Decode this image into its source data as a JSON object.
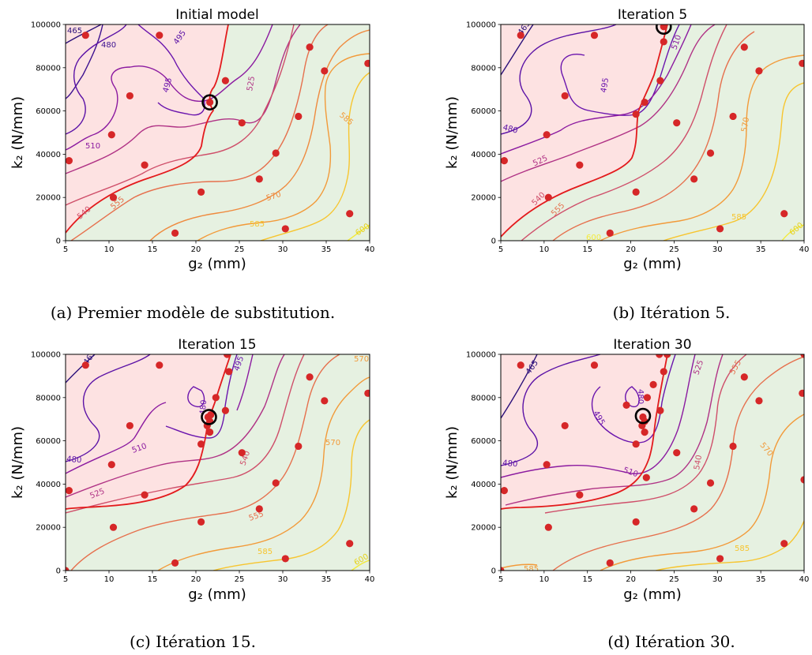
{
  "colors": {
    "infeasible_region": "#fde2e2",
    "feasible_region": "#e6f1e1",
    "boundary": "#e31a1c",
    "points": "#d62728",
    "highlight": "#000000",
    "contour_palette": [
      "#2a0f7a",
      "#5b12a6",
      "#8b1aa0",
      "#b03285",
      "#cf4f6a",
      "#e6704d",
      "#f29a39",
      "#f7c52f",
      "#f3ea3a"
    ]
  },
  "chart_data": [
    {
      "type": "contour",
      "title": "Initial model",
      "caption": "(a) Premier modèle de substitution.",
      "xlabel": "g₂ (mm)",
      "ylabel": "k₂ (N/mm)",
      "xlim": [
        5,
        40
      ],
      "ylim": [
        0,
        100000
      ],
      "xticks": [
        5,
        10,
        15,
        20,
        25,
        30,
        35,
        40
      ],
      "yticks": [
        0,
        20000,
        40000,
        60000,
        80000,
        100000
      ],
      "contour_labels": [
        "465",
        "480",
        "495",
        "495",
        "510",
        "525",
        "540",
        "555",
        "570",
        "585",
        "585",
        "600"
      ],
      "points": [
        [
          7.3,
          95000
        ],
        [
          15.8,
          95000
        ],
        [
          12.4,
          67000
        ],
        [
          10.3,
          49000
        ],
        [
          5.4,
          37000
        ],
        [
          14.1,
          35000
        ],
        [
          10.5,
          20000
        ],
        [
          17.6,
          3500
        ],
        [
          20.6,
          22500
        ],
        [
          23.4,
          74000
        ],
        [
          25.3,
          54500
        ],
        [
          27.3,
          28500
        ],
        [
          29.2,
          40500
        ],
        [
          30.3,
          5500
        ],
        [
          31.8,
          57500
        ],
        [
          33.1,
          89500
        ],
        [
          34.8,
          78500
        ],
        [
          37.7,
          12500
        ],
        [
          39.8,
          82000
        ],
        [
          21.6,
          64000
        ]
      ],
      "highlight": [
        21.6,
        64000
      ]
    },
    {
      "type": "contour",
      "title": "Iteration 5",
      "caption": "(b) Itération 5.",
      "xlabel": "g₂ (mm)",
      "ylabel": "k₂ (N/mm)",
      "xlim": [
        5,
        40
      ],
      "ylim": [
        0,
        100000
      ],
      "xticks": [
        5,
        10,
        15,
        20,
        25,
        30,
        35,
        40
      ],
      "yticks": [
        0,
        20000,
        40000,
        60000,
        80000,
        100000
      ],
      "contour_labels": [
        "465",
        "480",
        "495",
        "510",
        "525",
        "540",
        "555",
        "570",
        "585",
        "600",
        "600"
      ],
      "points": [
        [
          7.3,
          95000
        ],
        [
          15.8,
          95000
        ],
        [
          12.4,
          67000
        ],
        [
          10.3,
          49000
        ],
        [
          5.4,
          37000
        ],
        [
          14.1,
          35000
        ],
        [
          10.5,
          20000
        ],
        [
          17.6,
          3500
        ],
        [
          20.6,
          22500
        ],
        [
          23.4,
          74000
        ],
        [
          25.3,
          54500
        ],
        [
          27.3,
          28500
        ],
        [
          29.2,
          40500
        ],
        [
          30.3,
          5500
        ],
        [
          31.8,
          57500
        ],
        [
          33.1,
          89500
        ],
        [
          34.8,
          78500
        ],
        [
          37.7,
          12500
        ],
        [
          39.8,
          82000
        ],
        [
          21.6,
          64000
        ],
        [
          20.6,
          58500
        ],
        [
          23.8,
          92000
        ],
        [
          23.8,
          99000
        ]
      ],
      "highlight": [
        23.8,
        99000
      ]
    },
    {
      "type": "contour",
      "title": "Iteration 15",
      "caption": "(c) Itération 15.",
      "xlabel": "g₂ (mm)",
      "ylabel": "k₂ (N/mm)",
      "xlim": [
        5,
        40
      ],
      "ylim": [
        0,
        100000
      ],
      "xticks": [
        5,
        10,
        15,
        20,
        25,
        30,
        35,
        40
      ],
      "yticks": [
        0,
        20000,
        40000,
        60000,
        80000,
        100000
      ],
      "contour_labels": [
        "465",
        "480",
        "495",
        "480",
        "510",
        "525",
        "540",
        "555",
        "570",
        "570",
        "585",
        "600"
      ],
      "points": [
        [
          7.3,
          95000
        ],
        [
          15.8,
          95000
        ],
        [
          12.4,
          67000
        ],
        [
          10.3,
          49000
        ],
        [
          5.4,
          37000
        ],
        [
          14.1,
          35000
        ],
        [
          10.5,
          20000
        ],
        [
          17.6,
          3500
        ],
        [
          20.6,
          22500
        ],
        [
          23.4,
          74000
        ],
        [
          25.3,
          54500
        ],
        [
          27.3,
          28500
        ],
        [
          29.2,
          40500
        ],
        [
          30.3,
          5500
        ],
        [
          31.8,
          57500
        ],
        [
          33.1,
          89500
        ],
        [
          34.8,
          78500
        ],
        [
          37.7,
          12500
        ],
        [
          39.8,
          82000
        ],
        [
          21.6,
          64000
        ],
        [
          20.6,
          58500
        ],
        [
          23.8,
          92000
        ],
        [
          23.6,
          100000
        ],
        [
          22.3,
          80000
        ],
        [
          21.3,
          67000
        ],
        [
          21.6,
          69000
        ],
        [
          21.4,
          71000
        ],
        [
          21.7,
          72000
        ],
        [
          5.0,
          0
        ]
      ],
      "highlight": [
        21.5,
        71000
      ]
    },
    {
      "type": "contour",
      "title": "Iteration 30",
      "caption": "(d) Itération 30.",
      "xlabel": "g₂ (mm)",
      "ylabel": "k₂ (N/mm)",
      "xlim": [
        5,
        40
      ],
      "ylim": [
        0,
        100000
      ],
      "xticks": [
        5,
        10,
        15,
        20,
        25,
        30,
        35,
        40
      ],
      "yticks": [
        0,
        20000,
        40000,
        60000,
        80000,
        100000
      ],
      "contour_labels": [
        "465",
        "480",
        "480",
        "495",
        "510",
        "525",
        "540",
        "555",
        "570",
        "585",
        "585"
      ],
      "points": [
        [
          7.3,
          95000
        ],
        [
          15.8,
          95000
        ],
        [
          12.4,
          67000
        ],
        [
          10.3,
          49000
        ],
        [
          5.4,
          37000
        ],
        [
          14.1,
          35000
        ],
        [
          10.5,
          20000
        ],
        [
          17.6,
          3500
        ],
        [
          20.6,
          22500
        ],
        [
          23.4,
          74000
        ],
        [
          25.3,
          54500
        ],
        [
          27.3,
          28500
        ],
        [
          29.2,
          40500
        ],
        [
          30.3,
          5500
        ],
        [
          31.8,
          57500
        ],
        [
          33.1,
          89500
        ],
        [
          34.8,
          78500
        ],
        [
          37.7,
          12500
        ],
        [
          39.8,
          82000
        ],
        [
          21.6,
          64000
        ],
        [
          20.6,
          58500
        ],
        [
          23.8,
          92000
        ],
        [
          23.3,
          100000
        ],
        [
          22.6,
          86000
        ],
        [
          21.9,
          80000
        ],
        [
          19.5,
          76500
        ],
        [
          21.3,
          67000
        ],
        [
          21.6,
          69000
        ],
        [
          21.4,
          71000
        ],
        [
          21.8,
          43000
        ],
        [
          24.2,
          100000
        ],
        [
          40.0,
          100000
        ],
        [
          40.0,
          42000
        ],
        [
          5.0,
          0
        ]
      ],
      "highlight": [
        21.4,
        71500
      ]
    }
  ]
}
